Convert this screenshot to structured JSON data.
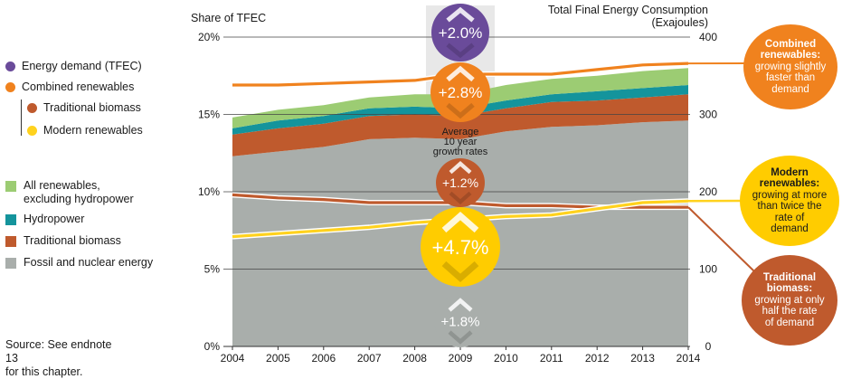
{
  "chart_data": {
    "type": "area",
    "years": [
      2004,
      2005,
      2006,
      2007,
      2008,
      2009,
      2010,
      2011,
      2012,
      2013,
      2014
    ],
    "left_axis": {
      "label": "Share of TFEC",
      "ticks": [
        "0%",
        "5%",
        "10%",
        "15%",
        "20%"
      ],
      "range": [
        0,
        20
      ]
    },
    "right_axis": {
      "label": "Total Final Energy Consumption",
      "label2": "(Exajoules)",
      "ticks": [
        "0",
        "100",
        "200",
        "300",
        "400"
      ],
      "range": [
        0,
        400
      ]
    },
    "stacked_areas": [
      {
        "name": "Fossil and nuclear energy",
        "color": "#a9aeab",
        "top": [
          12.3,
          12.6,
          12.9,
          13.4,
          13.5,
          13.4,
          13.9,
          14.2,
          14.3,
          14.5,
          14.6
        ]
      },
      {
        "name": "Traditional biomass",
        "color": "#bf5a2d",
        "top": [
          13.7,
          14.1,
          14.4,
          14.9,
          15.0,
          14.9,
          15.4,
          15.8,
          15.9,
          16.1,
          16.3
        ]
      },
      {
        "name": "Hydropower",
        "color": "#14949c",
        "top": [
          14.1,
          14.6,
          14.9,
          15.4,
          15.5,
          15.4,
          15.9,
          16.3,
          16.5,
          16.7,
          16.9
        ]
      },
      {
        "name": "All renewables, excluding hydropower",
        "color": "#9ccc73",
        "top": [
          14.8,
          15.3,
          15.6,
          16.1,
          16.3,
          16.3,
          16.9,
          17.3,
          17.5,
          17.8,
          18.0
        ]
      }
    ],
    "lines": [
      {
        "name": "Combined renewables",
        "color": "#f0821e",
        "values": [
          16.9,
          16.9,
          17.0,
          17.1,
          17.2,
          17.6,
          17.6,
          17.6,
          17.9,
          18.2,
          18.3
        ]
      },
      {
        "name": "Traditional biomass",
        "color": "#bf5a2d",
        "values": [
          9.8,
          9.6,
          9.5,
          9.3,
          9.3,
          9.3,
          9.1,
          9.1,
          9.0,
          9.0,
          9.0
        ]
      },
      {
        "name": "Modern renewables",
        "color": "#ffd21e",
        "values": [
          7.1,
          7.3,
          7.5,
          7.7,
          8.0,
          8.2,
          8.4,
          8.5,
          8.9,
          9.3,
          9.4
        ]
      }
    ],
    "growth_circles": [
      {
        "label": "+2.0%",
        "color": "#6a4b9a",
        "direction": "up"
      },
      {
        "label": "+2.8%",
        "color": "#f0821e",
        "direction": "up"
      },
      {
        "label": "+1.2%",
        "color": "#bf5a2d",
        "direction": "up"
      },
      {
        "label": "+4.7%",
        "color": "#ffcc00",
        "direction": "up"
      },
      {
        "label": "+1.8%",
        "color": "#a9aeab",
        "direction": "up"
      }
    ],
    "growth_caption": [
      "Average",
      "10 year",
      "growth rates"
    ],
    "highlight_year": 2009
  },
  "legend": {
    "dots": [
      {
        "label": "Energy demand (TFEC)",
        "color": "#6a4b9a"
      },
      {
        "label": "Combined renewables",
        "color": "#f0821e"
      },
      {
        "label": "Traditional biomass",
        "color": "#bf5a2d"
      },
      {
        "label": "Modern renewables",
        "color": "#ffd21e"
      }
    ],
    "squares": [
      {
        "label1": "All renewables,",
        "label2": "excluding hydropower",
        "color": "#9ccc73"
      },
      {
        "label1": "Hydropower",
        "label2": "",
        "color": "#14949c"
      },
      {
        "label1": "Traditional biomass",
        "label2": "",
        "color": "#bf5a2d"
      },
      {
        "label1": "Fossil and nuclear energy",
        "label2": "",
        "color": "#a9aeab"
      }
    ]
  },
  "source": {
    "line1": "Source: See endnote 13",
    "line2": "for this chapter."
  },
  "callouts": {
    "combined": {
      "title1": "Combined",
      "title2": "renewables:",
      "body1": "growing slightly",
      "body2": "faster than",
      "body3": "demand",
      "color": "#f0821e"
    },
    "modern": {
      "title1": "Modern",
      "title2": "renewables:",
      "body1": "growing at more",
      "body2": "than twice the",
      "body3": "rate of",
      "body4": "demand",
      "color": "#ffcc00"
    },
    "traditional": {
      "title1": "Traditional",
      "title2": "biomass:",
      "body1": "growing at only",
      "body2": "half the rate",
      "body3": "of demand",
      "color": "#bf5a2d"
    }
  }
}
